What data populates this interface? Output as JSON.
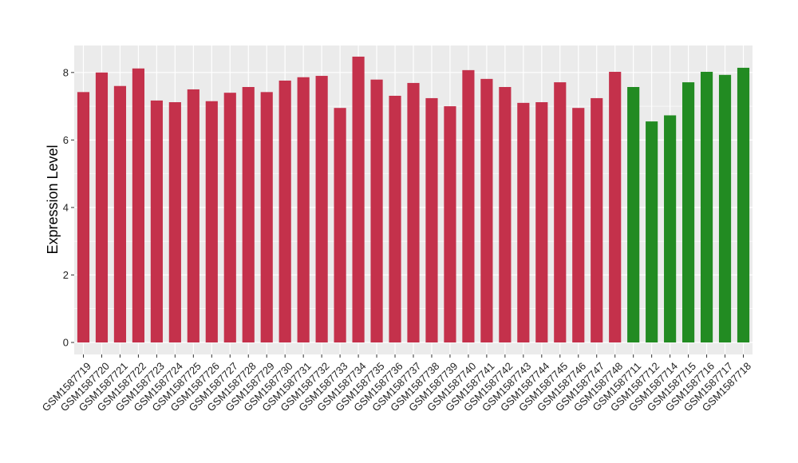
{
  "chart_data": {
    "type": "bar",
    "title": "",
    "xlabel": "",
    "ylabel": "Expression Level",
    "ylim": [
      0,
      8.8
    ],
    "yticks": [
      0,
      2,
      4,
      6,
      8
    ],
    "grid": true,
    "legend": "none",
    "colors": {
      "group_a": "#c4314b",
      "group_b": "#228b22",
      "panel_bg": "#ebebeb",
      "grid": "#ffffff"
    },
    "categories": [
      "GSM1587719",
      "GSM1587720",
      "GSM1587721",
      "GSM1587722",
      "GSM1587723",
      "GSM1587724",
      "GSM1587725",
      "GSM1587726",
      "GSM1587727",
      "GSM1587728",
      "GSM1587729",
      "GSM1587730",
      "GSM1587731",
      "GSM1587732",
      "GSM1587733",
      "GSM1587734",
      "GSM1587735",
      "GSM1587736",
      "GSM1587737",
      "GSM1587738",
      "GSM1587739",
      "GSM1587740",
      "GSM1587741",
      "GSM1587742",
      "GSM1587743",
      "GSM1587744",
      "GSM1587745",
      "GSM1587746",
      "GSM1587747",
      "GSM1587748",
      "GSM1587711",
      "GSM1587712",
      "GSM1587714",
      "GSM1587715",
      "GSM1587716",
      "GSM1587717",
      "GSM1587718"
    ],
    "values": [
      7.42,
      8.0,
      7.6,
      8.12,
      7.17,
      7.12,
      7.5,
      7.15,
      7.4,
      7.57,
      7.42,
      7.76,
      7.86,
      7.9,
      6.95,
      8.47,
      7.79,
      7.31,
      7.69,
      7.24,
      7.0,
      8.07,
      7.81,
      7.57,
      7.1,
      7.12,
      7.71,
      6.95,
      7.24,
      8.02,
      7.57,
      6.55,
      6.73,
      7.71,
      8.02,
      7.93,
      8.14
    ],
    "groups": [
      "a",
      "a",
      "a",
      "a",
      "a",
      "a",
      "a",
      "a",
      "a",
      "a",
      "a",
      "a",
      "a",
      "a",
      "a",
      "a",
      "a",
      "a",
      "a",
      "a",
      "a",
      "a",
      "a",
      "a",
      "a",
      "a",
      "a",
      "a",
      "a",
      "a",
      "b",
      "b",
      "b",
      "b",
      "b",
      "b",
      "b"
    ]
  }
}
